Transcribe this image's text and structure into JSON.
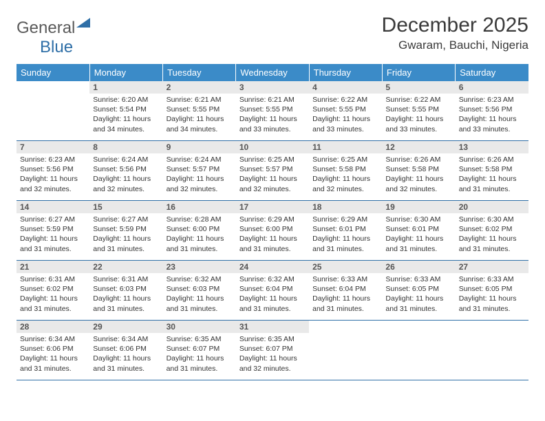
{
  "brand": {
    "part1": "General",
    "part2": "Blue"
  },
  "title": "December 2025",
  "location": "Gwaram, Bauchi, Nigeria",
  "colors": {
    "header_bg": "#3b8bc8",
    "header_text": "#ffffff",
    "border": "#2f6fa7",
    "daynum_bg": "#e9e9e9",
    "text": "#333333"
  },
  "weekdays": [
    "Sunday",
    "Monday",
    "Tuesday",
    "Wednesday",
    "Thursday",
    "Friday",
    "Saturday"
  ],
  "weeks": [
    [
      null,
      {
        "n": "1",
        "sr": "6:20 AM",
        "ss": "5:54 PM",
        "dl": "11 hours and 34 minutes."
      },
      {
        "n": "2",
        "sr": "6:21 AM",
        "ss": "5:55 PM",
        "dl": "11 hours and 34 minutes."
      },
      {
        "n": "3",
        "sr": "6:21 AM",
        "ss": "5:55 PM",
        "dl": "11 hours and 33 minutes."
      },
      {
        "n": "4",
        "sr": "6:22 AM",
        "ss": "5:55 PM",
        "dl": "11 hours and 33 minutes."
      },
      {
        "n": "5",
        "sr": "6:22 AM",
        "ss": "5:55 PM",
        "dl": "11 hours and 33 minutes."
      },
      {
        "n": "6",
        "sr": "6:23 AM",
        "ss": "5:56 PM",
        "dl": "11 hours and 33 minutes."
      }
    ],
    [
      {
        "n": "7",
        "sr": "6:23 AM",
        "ss": "5:56 PM",
        "dl": "11 hours and 32 minutes."
      },
      {
        "n": "8",
        "sr": "6:24 AM",
        "ss": "5:56 PM",
        "dl": "11 hours and 32 minutes."
      },
      {
        "n": "9",
        "sr": "6:24 AM",
        "ss": "5:57 PM",
        "dl": "11 hours and 32 minutes."
      },
      {
        "n": "10",
        "sr": "6:25 AM",
        "ss": "5:57 PM",
        "dl": "11 hours and 32 minutes."
      },
      {
        "n": "11",
        "sr": "6:25 AM",
        "ss": "5:58 PM",
        "dl": "11 hours and 32 minutes."
      },
      {
        "n": "12",
        "sr": "6:26 AM",
        "ss": "5:58 PM",
        "dl": "11 hours and 32 minutes."
      },
      {
        "n": "13",
        "sr": "6:26 AM",
        "ss": "5:58 PM",
        "dl": "11 hours and 31 minutes."
      }
    ],
    [
      {
        "n": "14",
        "sr": "6:27 AM",
        "ss": "5:59 PM",
        "dl": "11 hours and 31 minutes."
      },
      {
        "n": "15",
        "sr": "6:27 AM",
        "ss": "5:59 PM",
        "dl": "11 hours and 31 minutes."
      },
      {
        "n": "16",
        "sr": "6:28 AM",
        "ss": "6:00 PM",
        "dl": "11 hours and 31 minutes."
      },
      {
        "n": "17",
        "sr": "6:29 AM",
        "ss": "6:00 PM",
        "dl": "11 hours and 31 minutes."
      },
      {
        "n": "18",
        "sr": "6:29 AM",
        "ss": "6:01 PM",
        "dl": "11 hours and 31 minutes."
      },
      {
        "n": "19",
        "sr": "6:30 AM",
        "ss": "6:01 PM",
        "dl": "11 hours and 31 minutes."
      },
      {
        "n": "20",
        "sr": "6:30 AM",
        "ss": "6:02 PM",
        "dl": "11 hours and 31 minutes."
      }
    ],
    [
      {
        "n": "21",
        "sr": "6:31 AM",
        "ss": "6:02 PM",
        "dl": "11 hours and 31 minutes."
      },
      {
        "n": "22",
        "sr": "6:31 AM",
        "ss": "6:03 PM",
        "dl": "11 hours and 31 minutes."
      },
      {
        "n": "23",
        "sr": "6:32 AM",
        "ss": "6:03 PM",
        "dl": "11 hours and 31 minutes."
      },
      {
        "n": "24",
        "sr": "6:32 AM",
        "ss": "6:04 PM",
        "dl": "11 hours and 31 minutes."
      },
      {
        "n": "25",
        "sr": "6:33 AM",
        "ss": "6:04 PM",
        "dl": "11 hours and 31 minutes."
      },
      {
        "n": "26",
        "sr": "6:33 AM",
        "ss": "6:05 PM",
        "dl": "11 hours and 31 minutes."
      },
      {
        "n": "27",
        "sr": "6:33 AM",
        "ss": "6:05 PM",
        "dl": "11 hours and 31 minutes."
      }
    ],
    [
      {
        "n": "28",
        "sr": "6:34 AM",
        "ss": "6:06 PM",
        "dl": "11 hours and 31 minutes."
      },
      {
        "n": "29",
        "sr": "6:34 AM",
        "ss": "6:06 PM",
        "dl": "11 hours and 31 minutes."
      },
      {
        "n": "30",
        "sr": "6:35 AM",
        "ss": "6:07 PM",
        "dl": "11 hours and 31 minutes."
      },
      {
        "n": "31",
        "sr": "6:35 AM",
        "ss": "6:07 PM",
        "dl": "11 hours and 32 minutes."
      },
      null,
      null,
      null
    ]
  ],
  "labels": {
    "sunrise": "Sunrise:",
    "sunset": "Sunset:",
    "daylight": "Daylight:"
  }
}
